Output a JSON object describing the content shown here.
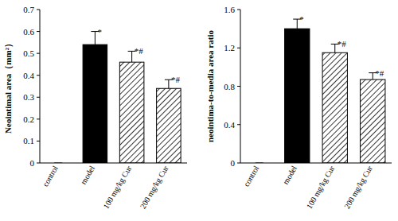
{
  "chart_data": [
    {
      "type": "bar",
      "y_label": "Neointimal area（mm²）",
      "categories": [
        "control",
        "model",
        "100 mg/kg Cur",
        "200 mg/kg Cur"
      ],
      "values": [
        0,
        0.54,
        0.46,
        0.34
      ],
      "errors": [
        0,
        0.06,
        0.05,
        0.04
      ],
      "annotations": [
        null,
        "*",
        "*#",
        "*#"
      ],
      "color": "#000000",
      "ylim": [
        0,
        0.7
      ],
      "yticks": [
        0,
        0.1,
        0.2,
        0.3,
        0.4,
        0.5,
        0.6,
        0.7
      ],
      "grid": false
    },
    {
      "type": "bar",
      "y_label": "neointima-to-media area ratio",
      "categories": [
        "control",
        "model",
        "100 mg/kg Cur",
        "200 mg/kg Cur"
      ],
      "values": [
        0,
        1.4,
        1.15,
        0.87
      ],
      "errors": [
        0,
        0.1,
        0.09,
        0.07
      ],
      "annotations": [
        null,
        "*",
        "*#",
        "*#"
      ],
      "color": "#000000",
      "ylim": [
        0,
        1.6
      ],
      "yticks": [
        0,
        0.4,
        0.8,
        1.2,
        1.6
      ],
      "grid": false
    }
  ]
}
